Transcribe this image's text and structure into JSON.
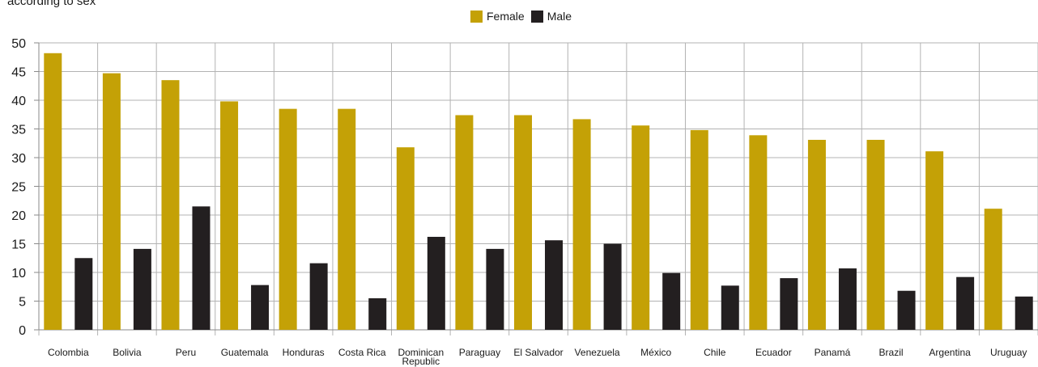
{
  "chart_data": {
    "type": "bar",
    "title": "according to sex",
    "xlabel": "",
    "ylabel": "",
    "ylim": [
      0,
      50
    ],
    "yticks": [
      0,
      5,
      10,
      15,
      20,
      25,
      30,
      35,
      40,
      45,
      50
    ],
    "grid": "horizontal and vertical",
    "legend": "top-center",
    "categories": [
      "Colombia",
      "Bolivia",
      "Peru",
      "Guatemala",
      "Honduras",
      "Costa Rica",
      "Dominican Republic",
      "Paraguay",
      "El Salvador",
      "Venezuela",
      "México",
      "Chile",
      "Ecuador",
      "Panamá",
      "Brazil",
      "Argentina",
      "Uruguay"
    ],
    "series": [
      {
        "name": "Female",
        "color": "#c4a106",
        "values": [
          48.2,
          44.7,
          43.5,
          39.8,
          38.5,
          38.5,
          31.8,
          37.4,
          37.4,
          36.7,
          35.6,
          34.8,
          33.9,
          33.1,
          33.1,
          31.1,
          21.1
        ]
      },
      {
        "name": "Male",
        "color": "#231f20",
        "values": [
          12.5,
          14.1,
          21.5,
          7.8,
          11.6,
          5.5,
          16.2,
          14.1,
          15.6,
          15.0,
          9.9,
          7.7,
          9.0,
          10.7,
          6.8,
          9.2,
          5.8
        ]
      }
    ]
  }
}
